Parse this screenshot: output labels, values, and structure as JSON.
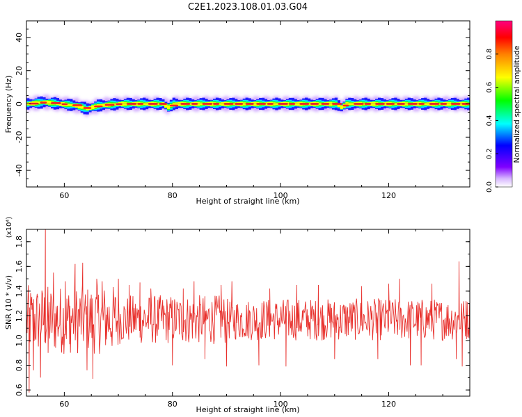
{
  "title": "C2E1.2023.108.01.03.G04",
  "chart_data": [
    {
      "type": "heatmap",
      "xlabel": "Height of straight line (km)",
      "ylabel": "Frequency (Hz)",
      "xlim": [
        53,
        135
      ],
      "ylim": [
        -50,
        50
      ],
      "x_ticks": [
        60,
        80,
        100,
        120
      ],
      "y_ticks": [
        -40,
        -20,
        0,
        20,
        40
      ],
      "colorbar": {
        "label": "Normalized spectral amplitude",
        "range": [
          0,
          1
        ],
        "ticks": [
          0.0,
          0.2,
          0.4,
          0.6,
          0.8
        ],
        "colormap": [
          "#ffffff",
          "#c8a0ff",
          "#8000ff",
          "#0000ff",
          "#00ffff",
          "#00ff00",
          "#ffff00",
          "#ff8000",
          "#ff0000",
          "#ff0080"
        ]
      },
      "ridge_center_hz": [
        [
          53,
          0
        ],
        [
          56,
          1
        ],
        [
          59,
          0
        ],
        [
          62,
          -1
        ],
        [
          64,
          -3
        ],
        [
          66,
          -1
        ],
        [
          70,
          0
        ],
        [
          78,
          0
        ],
        [
          79,
          -2
        ],
        [
          80,
          0
        ],
        [
          100,
          0
        ],
        [
          110,
          0
        ],
        [
          111,
          -2
        ],
        [
          112,
          0
        ],
        [
          135,
          0
        ]
      ],
      "ridge_halfwidth_hz": 3
    },
    {
      "type": "line",
      "xlabel": "Height of straight line (km)",
      "ylabel": "SNR (10 * v/v)",
      "y_multiplier": "(x10⁴)",
      "xlim": [
        53,
        135
      ],
      "ylim": [
        0.55,
        1.9
      ],
      "x_ticks": [
        60,
        80,
        100,
        120
      ],
      "y_ticks": [
        0.6,
        0.8,
        1.0,
        1.2,
        1.4,
        1.6,
        1.8
      ],
      "line_color": "#e8302c",
      "baseline": 1.17,
      "spikes": [
        [
          53.5,
          0.58
        ],
        [
          54,
          1.25
        ],
        [
          54.3,
          0.76
        ],
        [
          55,
          1.35
        ],
        [
          55.6,
          0.7
        ],
        [
          56.5,
          1.9
        ],
        [
          57,
          0.9
        ],
        [
          58,
          1.55
        ],
        [
          59,
          1.1
        ],
        [
          60.2,
          1.48
        ],
        [
          61,
          0.97
        ],
        [
          62,
          1.62
        ],
        [
          62.5,
          0.95
        ],
        [
          63.4,
          1.63
        ],
        [
          64.2,
          0.76
        ],
        [
          65.3,
          0.69
        ],
        [
          66,
          1.5
        ],
        [
          67,
          1.48
        ],
        [
          70,
          1.5
        ],
        [
          72,
          1.45
        ],
        [
          74,
          1.47
        ],
        [
          76,
          1.42
        ],
        [
          80,
          0.8
        ],
        [
          82,
          1.42
        ],
        [
          84,
          1.48
        ],
        [
          86,
          0.85
        ],
        [
          89,
          1.45
        ],
        [
          90,
          0.79
        ],
        [
          91,
          1.48
        ],
        [
          96,
          0.8
        ],
        [
          98,
          1.42
        ],
        [
          101,
          0.79
        ],
        [
          103,
          1.45
        ],
        [
          107,
          1.45
        ],
        [
          110,
          0.85
        ],
        [
          115,
          1.44
        ],
        [
          118,
          0.85
        ],
        [
          120,
          1.46
        ],
        [
          122,
          1.5
        ],
        [
          124,
          0.8
        ],
        [
          126,
          0.8
        ],
        [
          128,
          1.46
        ],
        [
          132.5,
          0.85
        ],
        [
          133,
          1.64
        ],
        [
          133.6,
          0.79
        ],
        [
          134.3,
          1.32
        ]
      ]
    }
  ]
}
